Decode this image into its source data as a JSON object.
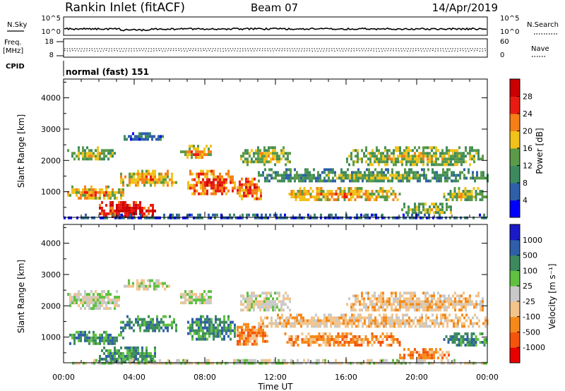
{
  "header": {
    "station": "Rankin Inlet (fitACF)",
    "beam": "Beam 07",
    "date": "14/Apr/2019"
  },
  "top_panels": {
    "nsky_label": "N.Sky",
    "nsearch_label": "N.Search",
    "nsky_ticks": [
      "10^5",
      "10^0"
    ],
    "nsearch_ticks": [
      "10^5",
      "10^0"
    ],
    "freq_label_1": "Freq.",
    "freq_label_2": "[MHz]",
    "freq_ticks": [
      "18",
      "8"
    ],
    "nave_label": "Nave",
    "nave_ticks": [
      "60",
      "0"
    ],
    "cpid_label": "CPID",
    "cpid_text": "normal (fast) 151"
  },
  "chart_data": [
    {
      "type": "heatmap",
      "title": "",
      "xlabel": "Time UT",
      "ylabel": "Slant Range [km]",
      "x_ticks": [
        "00:00",
        "04:00",
        "08:00",
        "12:00",
        "16:00",
        "20:00",
        "00:00"
      ],
      "x_range_hours": [
        0,
        24
      ],
      "y_range_km": [
        180,
        4600
      ],
      "y_ticks": [
        1000,
        2000,
        3000,
        4000
      ],
      "colorbar": {
        "label": "Power [dB]",
        "ticks": [
          "28",
          "24",
          "20",
          "16",
          "12",
          "8",
          "4"
        ],
        "colors": [
          "#0000ff",
          "#2f5fa8",
          "#3d8a5f",
          "#5a9a48",
          "#f0c21a",
          "#f57f16",
          "#e81a12",
          "#cc0000"
        ]
      },
      "echo_regions": [
        {
          "t0": 0.2,
          "t1": 2.9,
          "r0": 2000,
          "r1": 2450,
          "level": 3
        },
        {
          "t0": 0.2,
          "t1": 3.4,
          "r0": 780,
          "r1": 1200,
          "level": 4
        },
        {
          "t0": 2.0,
          "t1": 5.2,
          "r0": 180,
          "r1": 700,
          "level": 6
        },
        {
          "t0": 3.2,
          "t1": 6.4,
          "r0": 1200,
          "r1": 1700,
          "level": 4
        },
        {
          "t0": 3.4,
          "t1": 5.6,
          "r0": 2650,
          "r1": 2900,
          "level": 1
        },
        {
          "t0": 6.6,
          "t1": 8.4,
          "r0": 2100,
          "r1": 2500,
          "level": 4
        },
        {
          "t0": 7.0,
          "t1": 9.7,
          "r0": 900,
          "r1": 1700,
          "level": 5
        },
        {
          "t0": 9.8,
          "t1": 11.2,
          "r0": 800,
          "r1": 1450,
          "level": 5
        },
        {
          "t0": 10.0,
          "t1": 12.8,
          "r0": 1900,
          "r1": 2450,
          "level": 3
        },
        {
          "t0": 11.0,
          "t1": 24.0,
          "r0": 1300,
          "r1": 1750,
          "level": 2
        },
        {
          "t0": 12.5,
          "t1": 19.0,
          "r0": 750,
          "r1": 1150,
          "level": 4
        },
        {
          "t0": 16.0,
          "t1": 23.8,
          "r0": 1850,
          "r1": 2450,
          "level": 3
        },
        {
          "t0": 19.0,
          "t1": 22.0,
          "r0": 300,
          "r1": 650,
          "level": 3
        },
        {
          "t0": 21.5,
          "t1": 24.0,
          "r0": 700,
          "r1": 1150,
          "level": 3
        },
        {
          "t0": 0.0,
          "t1": 24.0,
          "r0": 180,
          "r1": 300,
          "level": 1
        }
      ]
    },
    {
      "type": "heatmap",
      "title": "",
      "xlabel": "Time UT",
      "ylabel": "Slant Range [km]",
      "x_ticks": [
        "00:00",
        "04:00",
        "08:00",
        "12:00",
        "16:00",
        "20:00",
        "00:00"
      ],
      "x_range_hours": [
        0,
        24
      ],
      "y_range_km": [
        180,
        4600
      ],
      "y_ticks": [
        1000,
        2000,
        3000,
        4000
      ],
      "colorbar": {
        "label": "Velocity [m s⁻¹]",
        "ticks": [
          "1000",
          "500",
          "100",
          "25",
          "-25",
          "-100",
          "-500",
          "-1000"
        ],
        "colors": [
          "#e80000",
          "#f5540c",
          "#f58a1a",
          "#f2c48a",
          "#c9c9c9",
          "#60c040",
          "#3d8a5f",
          "#2f5fa8",
          "#1a1ac8"
        ]
      },
      "echo_regions": [
        {
          "t0": 0.2,
          "t1": 3.2,
          "r0": 1950,
          "r1": 2500,
          "level": 4
        },
        {
          "t0": 0.2,
          "t1": 3.4,
          "r0": 780,
          "r1": 1200,
          "level": 6
        },
        {
          "t0": 2.0,
          "t1": 5.2,
          "r0": 180,
          "r1": 700,
          "level": 6
        },
        {
          "t0": 3.2,
          "t1": 6.4,
          "r0": 1200,
          "r1": 1700,
          "level": 6
        },
        {
          "t0": 3.4,
          "t1": 6.0,
          "r0": 2550,
          "r1": 2850,
          "level": 4
        },
        {
          "t0": 6.6,
          "t1": 8.4,
          "r0": 2050,
          "r1": 2500,
          "level": 4
        },
        {
          "t0": 7.0,
          "t1": 9.7,
          "r0": 900,
          "r1": 1700,
          "level": 6
        },
        {
          "t0": 9.8,
          "t1": 11.6,
          "r0": 750,
          "r1": 1450,
          "level": 2
        },
        {
          "t0": 10.0,
          "t1": 12.8,
          "r0": 1850,
          "r1": 2450,
          "level": 4
        },
        {
          "t0": 11.0,
          "t1": 24.0,
          "r0": 1300,
          "r1": 1750,
          "level": 3
        },
        {
          "t0": 12.5,
          "t1": 19.0,
          "r0": 750,
          "r1": 1150,
          "level": 2
        },
        {
          "t0": 16.0,
          "t1": 23.8,
          "r0": 1850,
          "r1": 2450,
          "level": 3
        },
        {
          "t0": 19.0,
          "t1": 22.0,
          "r0": 300,
          "r1": 650,
          "level": 2
        },
        {
          "t0": 21.5,
          "t1": 24.0,
          "r0": 700,
          "r1": 1150,
          "level": 6
        },
        {
          "t0": 0.0,
          "t1": 24.0,
          "r0": 180,
          "r1": 300,
          "level": 4
        }
      ]
    }
  ]
}
